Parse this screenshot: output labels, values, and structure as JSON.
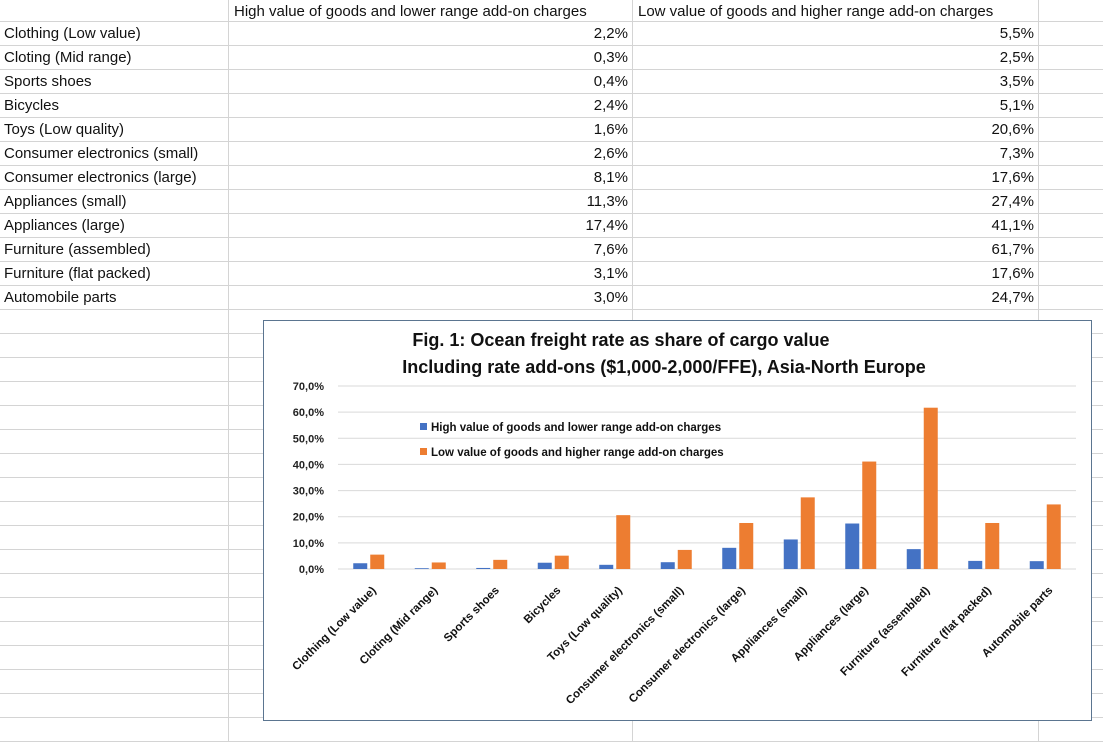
{
  "sheet": {
    "headers": [
      "",
      "High value of goods and lower range add-on charges",
      "Low value of goods and higher range add-on charges"
    ],
    "rows": [
      {
        "label": "Clothing (Low value)",
        "high": "2,2%",
        "low": "5,5%"
      },
      {
        "label": "Cloting (Mid range)",
        "high": "0,3%",
        "low": "2,5%"
      },
      {
        "label": "Sports shoes",
        "high": "0,4%",
        "low": "3,5%"
      },
      {
        "label": "Bicycles",
        "high": "2,4%",
        "low": "5,1%"
      },
      {
        "label": "Toys (Low quality)",
        "high": "1,6%",
        "low": "20,6%"
      },
      {
        "label": "Consumer electronics (small)",
        "high": "2,6%",
        "low": "7,3%"
      },
      {
        "label": "Consumer electronics (large)",
        "high": "8,1%",
        "low": "17,6%"
      },
      {
        "label": "Appliances (small)",
        "high": "11,3%",
        "low": "27,4%"
      },
      {
        "label": "Appliances (large)",
        "high": "17,4%",
        "low": "41,1%"
      },
      {
        "label": "Furniture (assembled)",
        "high": "7,6%",
        "low": "61,7%"
      },
      {
        "label": "Furniture (flat packed)",
        "high": "3,1%",
        "low": "17,6%"
      },
      {
        "label": "Automobile parts",
        "high": "3,0%",
        "low": "24,7%"
      }
    ]
  },
  "chart_data": {
    "type": "bar",
    "title": "Fig. 1: Ocean freight rate as share of cargo value",
    "subtitle": "Including rate add-ons ($1,000-2,000/FFE), Asia-North Europe",
    "xlabel": "",
    "ylabel": "",
    "ylim": [
      0,
      70
    ],
    "yticks": [
      0,
      10,
      20,
      30,
      40,
      50,
      60,
      70
    ],
    "ytick_labels": [
      "0,0%",
      "10,0%",
      "20,0%",
      "30,0%",
      "40,0%",
      "50,0%",
      "60,0%",
      "70,0%"
    ],
    "grid": true,
    "legend_position": "top-left",
    "categories": [
      "Clothing (Low value)",
      "Cloting (Mid range)",
      "Sports shoes",
      "Bicycles",
      "Toys (Low quality)",
      "Consumer electronics (small)",
      "Consumer electronics (large)",
      "Appliances (small)",
      "Appliances (large)",
      "Furniture (assembled)",
      "Furniture (flat packed)",
      "Automobile parts"
    ],
    "series": [
      {
        "name": "High value of goods and lower range add-on charges",
        "color": "#4472c4",
        "values": [
          2.2,
          0.3,
          0.4,
          2.4,
          1.6,
          2.6,
          8.1,
          11.3,
          17.4,
          7.6,
          3.1,
          3.0
        ]
      },
      {
        "name": "Low value of goods and higher range add-on charges",
        "color": "#ed7d31",
        "values": [
          5.5,
          2.5,
          3.5,
          5.1,
          20.6,
          7.3,
          17.6,
          27.4,
          41.1,
          61.7,
          17.6,
          24.7
        ]
      }
    ]
  }
}
